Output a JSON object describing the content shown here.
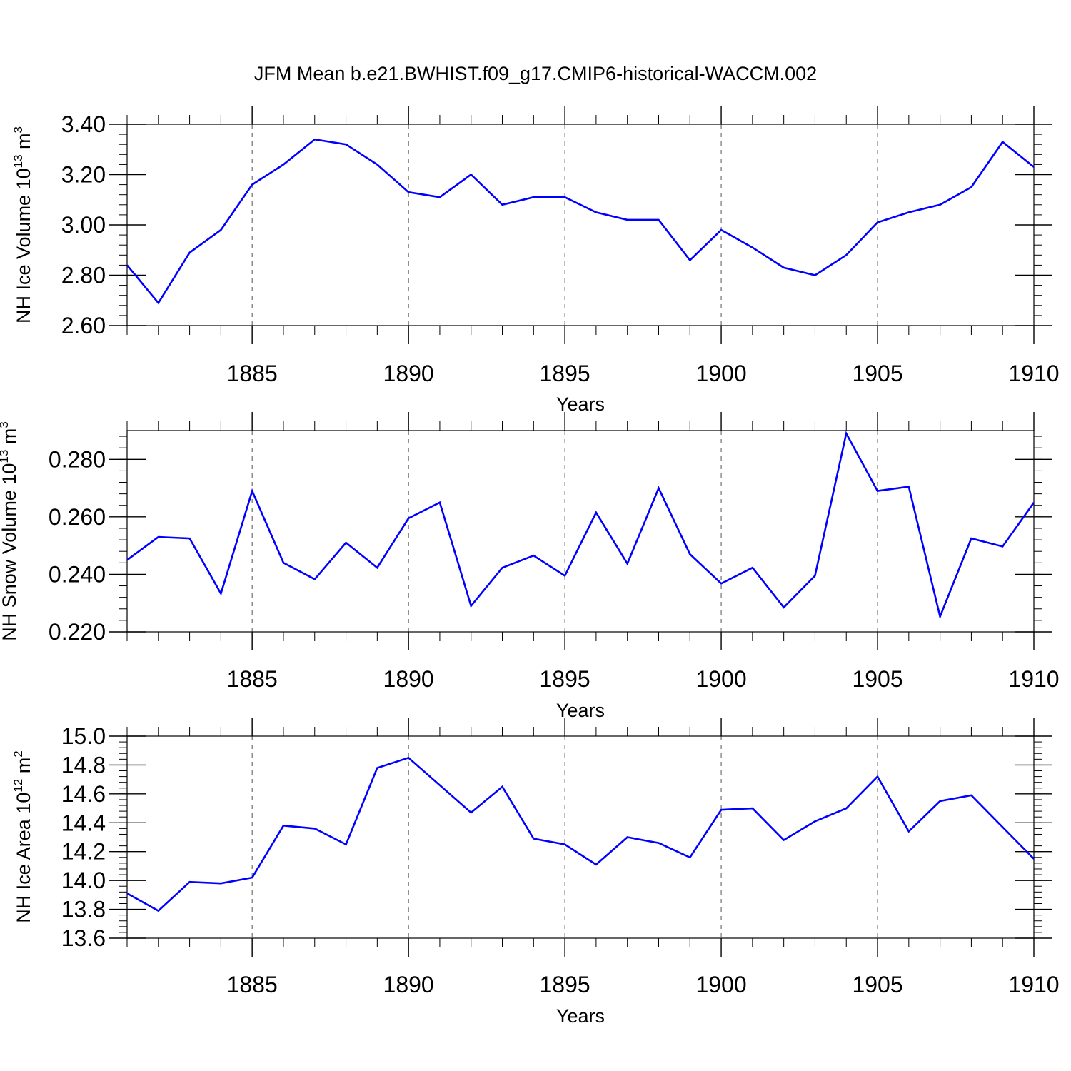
{
  "title": "JFM Mean b.e21.BWHIST.f09_g17.CMIP6-historical-WACCM.002",
  "colors": {
    "line": "#0000ff",
    "axis": "#000000",
    "grid": "#555555"
  },
  "chart_data": [
    {
      "type": "line",
      "ylabel": {
        "text": "NH Ice Volume 10",
        "sup1": "13",
        "unit": " m",
        "sup2": "3"
      },
      "xlabel": "Years",
      "xlim": [
        1881,
        1910
      ],
      "ylim": [
        2.6,
        3.4
      ],
      "xticks": [
        1885,
        1890,
        1895,
        1900,
        1905,
        1910
      ],
      "yticks": [
        2.6,
        2.8,
        3.0,
        3.2,
        3.4
      ],
      "ytick_labels": [
        "2.60",
        "2.80",
        "3.00",
        "3.20",
        "3.40"
      ],
      "ytick_minor_step": 0.04,
      "grid": "vertical-dashed",
      "x": [
        1881,
        1882,
        1883,
        1884,
        1885,
        1886,
        1887,
        1888,
        1889,
        1890,
        1891,
        1892,
        1893,
        1894,
        1895,
        1896,
        1897,
        1898,
        1899,
        1900,
        1901,
        1902,
        1903,
        1904,
        1905,
        1906,
        1907,
        1908,
        1909,
        1910
      ],
      "values": [
        2.84,
        2.69,
        2.89,
        2.98,
        3.16,
        3.24,
        3.34,
        3.32,
        3.24,
        3.13,
        3.11,
        3.2,
        3.08,
        3.11,
        3.11,
        3.05,
        3.02,
        3.02,
        2.86,
        2.98,
        2.91,
        2.83,
        2.8,
        2.88,
        3.01,
        3.05,
        3.08,
        3.15,
        3.33,
        3.23
      ]
    },
    {
      "type": "line",
      "ylabel": {
        "text": "NH Snow Volume 10",
        "sup1": "13",
        "unit": " m",
        "sup2": "3"
      },
      "xlabel": "Years",
      "xlim": [
        1881,
        1910
      ],
      "ylim": [
        0.22,
        0.29
      ],
      "xticks": [
        1885,
        1890,
        1895,
        1900,
        1905,
        1910
      ],
      "yticks": [
        0.22,
        0.24,
        0.26,
        0.28
      ],
      "ytick_labels": [
        "0.220",
        "0.240",
        "0.260",
        "0.280"
      ],
      "ytick_minor_step": 0.004,
      "grid": "vertical-dashed",
      "x": [
        1881,
        1882,
        1883,
        1884,
        1885,
        1886,
        1887,
        1888,
        1889,
        1890,
        1891,
        1892,
        1893,
        1894,
        1895,
        1896,
        1897,
        1898,
        1899,
        1900,
        1901,
        1902,
        1903,
        1904,
        1905,
        1906,
        1907,
        1908,
        1909,
        1910
      ],
      "values": [
        0.245,
        0.253,
        0.2525,
        0.2333,
        0.269,
        0.244,
        0.2383,
        0.251,
        0.2423,
        0.2595,
        0.265,
        0.229,
        0.2423,
        0.2465,
        0.2395,
        0.2615,
        0.2437,
        0.27,
        0.247,
        0.2368,
        0.2423,
        0.2285,
        0.2395,
        0.289,
        0.269,
        0.2705,
        0.2253,
        0.2525,
        0.2497,
        0.265
      ]
    },
    {
      "type": "line",
      "ylabel": {
        "text": "NH Ice Area 10",
        "sup1": "12",
        "unit": " m",
        "sup2": "2"
      },
      "xlabel": "Years",
      "xlim": [
        1881,
        1910
      ],
      "ylim": [
        13.6,
        15.0
      ],
      "xticks": [
        1885,
        1890,
        1895,
        1900,
        1905,
        1910
      ],
      "yticks": [
        13.6,
        13.8,
        14.0,
        14.2,
        14.4,
        14.6,
        14.8,
        15.0
      ],
      "ytick_labels": [
        "13.6",
        "13.8",
        "14.0",
        "14.2",
        "14.4",
        "14.6",
        "14.8",
        "15.0"
      ],
      "ytick_minor_step": 0.04,
      "grid": "vertical-dashed",
      "x": [
        1881,
        1882,
        1883,
        1884,
        1885,
        1886,
        1887,
        1888,
        1889,
        1890,
        1891,
        1892,
        1893,
        1894,
        1895,
        1896,
        1897,
        1898,
        1899,
        1900,
        1901,
        1902,
        1903,
        1904,
        1905,
        1906,
        1907,
        1908,
        1909,
        1910
      ],
      "values": [
        13.91,
        13.79,
        13.99,
        13.98,
        14.02,
        14.38,
        14.36,
        14.25,
        14.78,
        14.85,
        14.66,
        14.47,
        14.65,
        14.29,
        14.25,
        14.11,
        14.3,
        14.26,
        14.16,
        14.49,
        14.5,
        14.28,
        14.41,
        14.5,
        14.72,
        14.34,
        14.55,
        14.59,
        14.37,
        14.15
      ]
    }
  ]
}
